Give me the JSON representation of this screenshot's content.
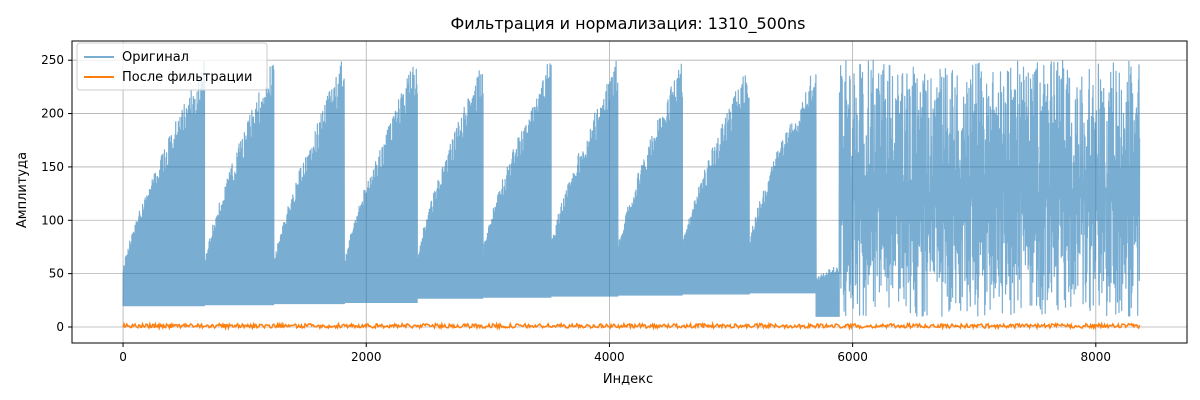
{
  "chart_data": {
    "type": "line",
    "title": "Фильтрация и нормализация: 1310_500ns",
    "xlabel": "Индекс",
    "ylabel": "Амплитуда",
    "xlim": [
      -420,
      8750
    ],
    "ylim": [
      -15,
      268
    ],
    "xticks": [
      0,
      2000,
      4000,
      6000,
      8000
    ],
    "yticks": [
      0,
      50,
      100,
      150,
      200,
      250
    ],
    "grid": true,
    "legend": {
      "position": "top-left"
    },
    "n_points": 8360,
    "series": [
      {
        "name": "Оригинал",
        "color": "#1f77b4",
        "opacity": 0.6,
        "segments": [
          {
            "x_start": 0,
            "x_end": 670,
            "baseline": 20,
            "peak_start": 55,
            "peak_end": 250
          },
          {
            "x_start": 670,
            "x_end": 1240,
            "baseline": 21,
            "peak_start": 60,
            "peak_end": 255
          },
          {
            "x_start": 1240,
            "x_end": 1820,
            "baseline": 22,
            "peak_start": 60,
            "peak_end": 255
          },
          {
            "x_start": 1820,
            "x_end": 2420,
            "baseline": 23,
            "peak_start": 60,
            "peak_end": 255
          },
          {
            "x_start": 2420,
            "x_end": 2960,
            "baseline": 27,
            "peak_start": 65,
            "peak_end": 250
          },
          {
            "x_start": 2960,
            "x_end": 3520,
            "baseline": 28,
            "peak_start": 70,
            "peak_end": 255
          },
          {
            "x_start": 3520,
            "x_end": 4070,
            "baseline": 29,
            "peak_start": 75,
            "peak_end": 255
          },
          {
            "x_start": 4070,
            "x_end": 4600,
            "baseline": 30,
            "peak_start": 75,
            "peak_end": 250
          },
          {
            "x_start": 4600,
            "x_end": 5150,
            "baseline": 31,
            "peak_start": 75,
            "peak_end": 250
          },
          {
            "x_start": 5150,
            "x_end": 5700,
            "baseline": 32,
            "peak_start": 80,
            "peak_end": 250
          },
          {
            "x_start": 5700,
            "x_end": 5890,
            "baseline": 10,
            "peak_start": 45,
            "peak_end": 60
          },
          {
            "x_start": 5890,
            "x_end": 8360,
            "baseline": 0,
            "peak_start": 250,
            "peak_end": 250,
            "noisy": true
          }
        ]
      },
      {
        "name": "После фильтрации",
        "color": "#ff7f0e",
        "opacity": 1,
        "range": [
          -1,
          3
        ]
      }
    ]
  }
}
